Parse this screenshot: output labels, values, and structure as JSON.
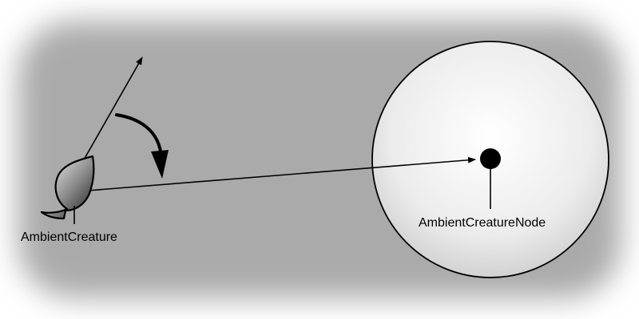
{
  "diagram": {
    "creature_label": "AmbientCreature",
    "node_label": "AmbientCreatureNode"
  },
  "colors": {
    "background_center": "#ababab",
    "background_edge": "#ffffff",
    "node_area_center": "#ffffff",
    "node_area_edge": "#d4d4d4",
    "stroke": "#000000"
  },
  "icons": {
    "creature": "teardrop-creature-icon",
    "node": "node-dot-icon",
    "rotation": "curved-rotation-arrow-icon"
  }
}
